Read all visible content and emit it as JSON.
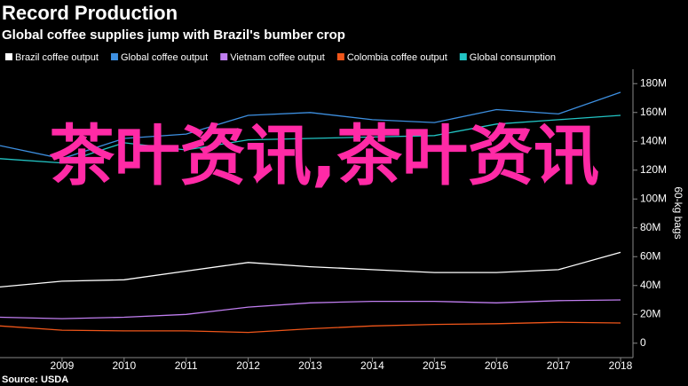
{
  "chart_data": {
    "type": "line",
    "title": "Record Production",
    "subtitle": "Global coffee supplies jump with Brazil's bumber crop",
    "source": "Source: USDA",
    "y_axis_label": "60-kg bags",
    "annotation": "茶叶资讯,茶叶资讯",
    "x": [
      2008,
      2009,
      2010,
      2011,
      2012,
      2013,
      2014,
      2015,
      2016,
      2017,
      2018
    ],
    "xlim": [
      2008,
      2018.2
    ],
    "xticks": [
      2009,
      2010,
      2011,
      2012,
      2013,
      2014,
      2015,
      2016,
      2017,
      2018
    ],
    "ylim": [
      -10000000,
      190000000
    ],
    "yticks": [
      0,
      {
        "value": 20000000,
        "label": "20M"
      },
      {
        "value": 40000000,
        "label": "40M"
      },
      {
        "value": 60000000,
        "label": "60M"
      },
      {
        "value": 80000000,
        "label": "80M"
      },
      {
        "value": 100000000,
        "label": "100M"
      },
      {
        "value": 120000000,
        "label": "120M"
      },
      {
        "value": 140000000,
        "label": "140M"
      },
      {
        "value": 160000000,
        "label": "160M"
      },
      {
        "value": 180000000,
        "label": "180M"
      }
    ],
    "grid": false,
    "series": [
      {
        "name": "Brazil coffee output",
        "color": "#ffffff",
        "values": [
          39000000,
          43000000,
          44000000,
          50000000,
          56000000,
          53000000,
          51000000,
          49000000,
          49000000,
          51000000,
          63000000
        ]
      },
      {
        "name": "Global coffee output",
        "color": "#3d8fe0",
        "values": [
          137000000,
          128000000,
          142000000,
          145000000,
          158000000,
          160000000,
          155000000,
          153000000,
          162000000,
          159000000,
          174000000
        ]
      },
      {
        "name": "Vietnam coffee output",
        "color": "#c07ef0",
        "values": [
          18000000,
          17000000,
          18000000,
          20000000,
          25000000,
          28000000,
          29000000,
          29000000,
          28000000,
          29500000,
          30000000
        ]
      },
      {
        "name": "Colombia coffee output",
        "color": "#f0561a",
        "values": [
          12000000,
          9000000,
          8500000,
          8500000,
          7500000,
          10000000,
          12000000,
          13000000,
          13500000,
          14500000,
          14000000
        ]
      },
      {
        "name": "Global consumption",
        "color": "#22c4c4",
        "values": [
          128000000,
          125000000,
          139000000,
          134000000,
          141000000,
          142000000,
          143000000,
          144000000,
          152000000,
          155000000,
          158000000
        ]
      }
    ]
  }
}
